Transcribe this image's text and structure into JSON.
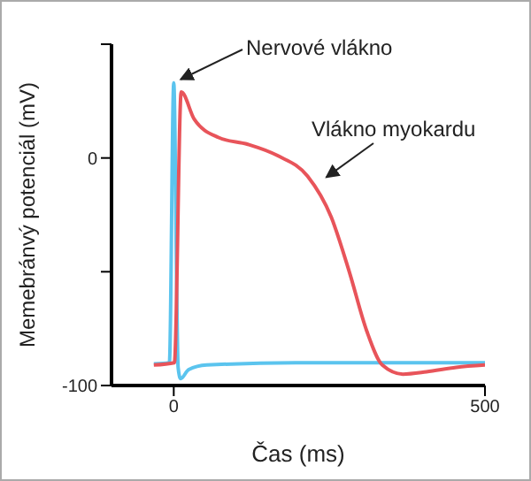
{
  "chart_data": {
    "type": "line",
    "xlabel": "Čas (ms)",
    "ylabel": "Memebránvý potenciál (mV)",
    "xlim": [
      -100,
      500
    ],
    "xticks": [
      0,
      500
    ],
    "ylim": [
      -100,
      50
    ],
    "yticks": [
      {
        "value": 50,
        "label": null
      },
      0,
      {
        "value": -50,
        "label": null
      },
      -100
    ],
    "grid": false,
    "legend": false,
    "marker": "none",
    "line_style": "solid",
    "series": [
      {
        "color": "#5bc4ee",
        "x": [
          -32,
          -7,
          0,
          7,
          11,
          24,
          53,
          196,
          500
        ],
        "values": [
          -90.5,
          -90,
          33,
          -92,
          -97,
          -93,
          -91,
          -90,
          -90
        ]
      },
      {
        "color": "#e8545a",
        "x": [
          -32,
          1,
          12,
          33,
          72,
          119,
          167,
          215,
          253,
          282,
          310,
          335,
          368,
          406,
          454,
          500
        ],
        "values": [
          -91,
          -90,
          29,
          17,
          9,
          6,
          1,
          -8,
          -26,
          -50,
          -76,
          -91,
          -95,
          -94,
          -92,
          -91
        ]
      }
    ],
    "annotations": [
      {
        "text": "Nervové vlákno",
        "x": 0,
        "y": 33
      },
      {
        "text": "Vlákno myokardu",
        "x": 234,
        "y": -10
      }
    ]
  }
}
